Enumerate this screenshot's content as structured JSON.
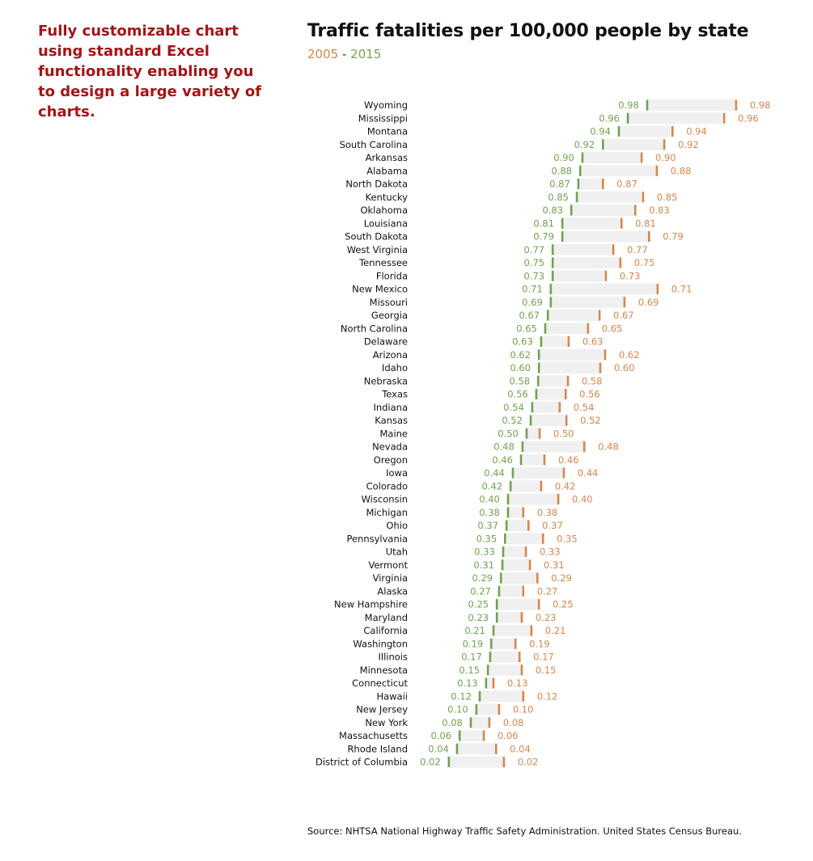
{
  "promo_text": "Fully customizable chart using standard Excel functionality enabling you to design a large variety of charts.",
  "colors": {
    "promo": "#a51417",
    "series_2005": "#d7864c",
    "series_2015": "#70a24f",
    "bar_fill": "#f0f0f0"
  },
  "source": "Source: NHTSA National Highway Traffic Safety Administration. United States Census Bureau.",
  "chart_data": {
    "type": "dumbbell",
    "title": "Traffic fatalities per 100,000 people by state",
    "subtitle": {
      "start": "2005",
      "separator": "-",
      "end": "2015"
    },
    "xlabel": "",
    "ylabel": "",
    "xlim": [
      0,
      100
    ],
    "grid": false,
    "legend": "subtitle",
    "series": [
      {
        "name": "2015",
        "color": "#70a24f"
      },
      {
        "name": "2005",
        "color": "#d7864c"
      }
    ],
    "rows": [
      {
        "state": "Wyoming",
        "label": "0.98",
        "pos_2015": 65.2,
        "pos_2005": 89.1
      },
      {
        "state": "Mississippi",
        "label": "0.96",
        "pos_2015": 60.0,
        "pos_2005": 85.9
      },
      {
        "state": "Montana",
        "label": "0.94",
        "pos_2015": 57.6,
        "pos_2005": 72.0
      },
      {
        "state": "South Carolina",
        "label": "0.92",
        "pos_2015": 53.3,
        "pos_2005": 69.8
      },
      {
        "state": "Arkansas",
        "label": "0.90",
        "pos_2015": 47.8,
        "pos_2005": 63.7
      },
      {
        "state": "Alabama",
        "label": "0.88",
        "pos_2015": 47.2,
        "pos_2005": 67.8
      },
      {
        "state": "North Dakota",
        "label": "0.87",
        "pos_2015": 46.7,
        "pos_2005": 53.3
      },
      {
        "state": "Kentucky",
        "label": "0.85",
        "pos_2015": 46.3,
        "pos_2005": 64.1
      },
      {
        "state": "Oklahoma",
        "label": "0.83",
        "pos_2015": 44.8,
        "pos_2005": 62.0
      },
      {
        "state": "Louisiana",
        "label": "0.81",
        "pos_2015": 42.4,
        "pos_2005": 58.3
      },
      {
        "state": "South Dakota",
        "label": "0.79",
        "pos_2015": 42.4,
        "pos_2005": 65.7
      },
      {
        "state": "West Virginia",
        "label": "0.77",
        "pos_2015": 39.8,
        "pos_2005": 56.1
      },
      {
        "state": "Tennessee",
        "label": "0.75",
        "pos_2015": 39.8,
        "pos_2005": 58.0
      },
      {
        "state": "Florida",
        "label": "0.73",
        "pos_2015": 39.8,
        "pos_2005": 54.1
      },
      {
        "state": "New Mexico",
        "label": "0.71",
        "pos_2015": 39.3,
        "pos_2005": 68.0
      },
      {
        "state": "Missouri",
        "label": "0.69",
        "pos_2015": 39.3,
        "pos_2005": 59.1
      },
      {
        "state": "Georgia",
        "label": "0.67",
        "pos_2015": 38.5,
        "pos_2005": 52.4
      },
      {
        "state": "North Carolina",
        "label": "0.65",
        "pos_2015": 37.8,
        "pos_2005": 49.3
      },
      {
        "state": "Delaware",
        "label": "0.63",
        "pos_2015": 36.7,
        "pos_2005": 44.1
      },
      {
        "state": "Arizona",
        "label": "0.62",
        "pos_2015": 36.1,
        "pos_2005": 53.9
      },
      {
        "state": "Idaho",
        "label": "0.60",
        "pos_2015": 36.1,
        "pos_2005": 52.6
      },
      {
        "state": "Nebraska",
        "label": "0.58",
        "pos_2015": 35.9,
        "pos_2005": 43.9
      },
      {
        "state": "Texas",
        "label": "0.56",
        "pos_2015": 35.4,
        "pos_2005": 43.3
      },
      {
        "state": "Indiana",
        "label": "0.54",
        "pos_2015": 34.3,
        "pos_2005": 41.7
      },
      {
        "state": "Kansas",
        "label": "0.52",
        "pos_2015": 33.9,
        "pos_2005": 43.5
      },
      {
        "state": "Maine",
        "label": "0.50",
        "pos_2015": 32.8,
        "pos_2005": 36.3
      },
      {
        "state": "Nevada",
        "label": "0.48",
        "pos_2015": 31.7,
        "pos_2005": 48.3
      },
      {
        "state": "Oregon",
        "label": "0.46",
        "pos_2015": 31.3,
        "pos_2005": 37.6
      },
      {
        "state": "Iowa",
        "label": "0.44",
        "pos_2015": 29.1,
        "pos_2005": 42.8
      },
      {
        "state": "Colorado",
        "label": "0.42",
        "pos_2015": 28.5,
        "pos_2005": 36.7
      },
      {
        "state": "Wisconsin",
        "label": "0.40",
        "pos_2015": 27.8,
        "pos_2005": 41.3
      },
      {
        "state": "Michigan",
        "label": "0.38",
        "pos_2015": 27.8,
        "pos_2005": 31.9
      },
      {
        "state": "Ohio",
        "label": "0.37",
        "pos_2015": 27.4,
        "pos_2005": 33.3
      },
      {
        "state": "Pennsylvania",
        "label": "0.35",
        "pos_2015": 27.0,
        "pos_2005": 37.2
      },
      {
        "state": "Utah",
        "label": "0.33",
        "pos_2015": 26.5,
        "pos_2005": 32.6
      },
      {
        "state": "Vermont",
        "label": "0.31",
        "pos_2015": 26.3,
        "pos_2005": 33.7
      },
      {
        "state": "Virginia",
        "label": "0.29",
        "pos_2015": 25.9,
        "pos_2005": 35.7
      },
      {
        "state": "Alaska",
        "label": "0.27",
        "pos_2015": 25.4,
        "pos_2005": 31.9
      },
      {
        "state": "New Hampshire",
        "label": "0.25",
        "pos_2015": 24.8,
        "pos_2005": 36.1
      },
      {
        "state": "Maryland",
        "label": "0.23",
        "pos_2015": 24.8,
        "pos_2005": 31.5
      },
      {
        "state": "California",
        "label": "0.21",
        "pos_2015": 23.9,
        "pos_2005": 34.1
      },
      {
        "state": "Washington",
        "label": "0.19",
        "pos_2015": 23.3,
        "pos_2005": 29.8
      },
      {
        "state": "Illinois",
        "label": "0.17",
        "pos_2015": 23.0,
        "pos_2005": 30.9
      },
      {
        "state": "Minnesota",
        "label": "0.15",
        "pos_2015": 22.4,
        "pos_2005": 31.5
      },
      {
        "state": "Connecticut",
        "label": "0.13",
        "pos_2015": 21.9,
        "pos_2005": 23.9
      },
      {
        "state": "Hawaii",
        "label": "0.12",
        "pos_2015": 20.2,
        "pos_2005": 31.9
      },
      {
        "state": "New Jersey",
        "label": "0.10",
        "pos_2015": 19.3,
        "pos_2005": 25.4
      },
      {
        "state": "New York",
        "label": "0.08",
        "pos_2015": 17.8,
        "pos_2005": 22.8
      },
      {
        "state": "Massachusetts",
        "label": "0.06",
        "pos_2015": 14.8,
        "pos_2005": 21.3
      },
      {
        "state": "Rhode Island",
        "label": "0.04",
        "pos_2015": 14.1,
        "pos_2005": 24.6
      },
      {
        "state": "District of Columbia",
        "label": "0.02",
        "pos_2015": 11.9,
        "pos_2005": 26.7
      }
    ]
  }
}
